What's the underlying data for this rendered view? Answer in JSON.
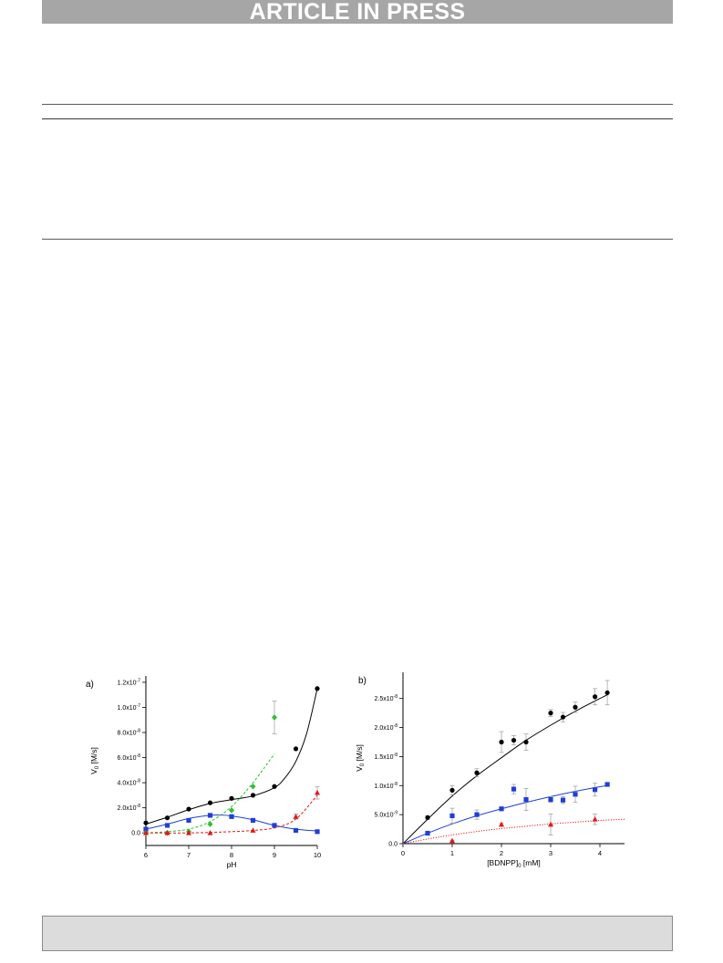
{
  "header": {
    "banner_text": "ARTICLE IN PRESS"
  },
  "figure": {
    "panels": [
      {
        "id": "a",
        "label": "a)"
      },
      {
        "id": "b",
        "label": "b)"
      }
    ]
  },
  "chart_data": [
    {
      "type": "scatter",
      "panel_label": "a)",
      "xlabel": "pH",
      "ylabel": "V0 [M/s]",
      "ylabel_main": "V",
      "ylabel_sub": "0",
      "ylabel_unit": " [M/s]",
      "xlim": [
        6,
        10
      ],
      "ylim": [
        -1e-08,
        1.25e-07
      ],
      "xticks": [
        6,
        7,
        8,
        9,
        10
      ],
      "xtick_labels": [
        "6",
        "7",
        "8",
        "9",
        "10"
      ],
      "yticks": [
        0,
        2e-08,
        4e-08,
        6e-08,
        8e-08,
        1e-07,
        1.2e-07
      ],
      "ytick_labels": [
        "0.0",
        "2.0x10",
        "4.0x10",
        "6.0x10",
        "8.0x10",
        "1.0x10",
        "1.2x10"
      ],
      "ytick_exponents": [
        "",
        "-8",
        "-8",
        "-8",
        "-8",
        "-7",
        "-7"
      ],
      "grid": false,
      "series": [
        {
          "marker": "circle",
          "color": "#000000",
          "line": "solid",
          "x": [
            6,
            6.5,
            7,
            7.5,
            8,
            8.5,
            9,
            9.5,
            10
          ],
          "y": [
            8e-09,
            1.2e-08,
            1.9e-08,
            2.4e-08,
            2.75e-08,
            3e-08,
            3.7e-08,
            6.7e-08,
            1.15e-07
          ],
          "fit_x": [
            6,
            6.5,
            7,
            7.5,
            8,
            8.5,
            9,
            9.25,
            9.5,
            9.75,
            10
          ],
          "fit_y": [
            7e-09,
            1.25e-08,
            1.85e-08,
            2.35e-08,
            2.65e-08,
            2.95e-08,
            3.6e-08,
            4.4e-08,
            5.7e-08,
            7.9e-08,
            1.15e-07
          ]
        },
        {
          "marker": "square",
          "color": "#1f3fd6",
          "line": "solid",
          "x": [
            6,
            6.5,
            7,
            7.5,
            8,
            8.5,
            9,
            9.5,
            10
          ],
          "y": [
            3e-09,
            6e-09,
            1e-08,
            1.4e-08,
            1.3e-08,
            1e-08,
            6e-09,
            2e-09,
            1e-09
          ],
          "fit_x": [
            6,
            6.5,
            7,
            7.5,
            7.75,
            8,
            8.5,
            9,
            9.5,
            10
          ],
          "fit_y": [
            3e-09,
            7e-09,
            1.15e-08,
            1.4e-08,
            1.42e-08,
            1.35e-08,
            1.05e-08,
            6e-09,
            3e-09,
            1.5e-09
          ]
        },
        {
          "marker": "diamond",
          "color": "#2fbf2f",
          "line": "dashed",
          "x": [
            6,
            6.5,
            7,
            7.5,
            8,
            8.5,
            9
          ],
          "y": [
            0,
            0,
            1e-09,
            7e-09,
            1.8e-08,
            3.7e-08,
            9.2e-08
          ],
          "err": [
            0,
            0,
            0,
            0,
            0,
            0,
            1.3e-08
          ],
          "fit_x": [
            6,
            6.5,
            7,
            7.5,
            8,
            8.5,
            9
          ],
          "fit_y": [
            0,
            1e-09,
            3e-09,
            9e-09,
            2.1e-08,
            4e-08,
            6.3e-08
          ]
        },
        {
          "marker": "triangle",
          "color": "#e01818",
          "line": "dashed",
          "x": [
            6,
            6.5,
            7,
            7.5,
            8.5,
            9.5,
            10
          ],
          "y": [
            0,
            0,
            0,
            0,
            2e-09,
            1.3e-08,
            3.2e-08
          ],
          "err": [
            0,
            0,
            0,
            0,
            0,
            2e-09,
            5e-09
          ],
          "fit_x": [
            6,
            7,
            8,
            8.5,
            9,
            9.5,
            10
          ],
          "fit_y": [
            0,
            0,
            1e-09,
            2e-09,
            4e-09,
            1.1e-08,
            3e-08
          ]
        }
      ]
    },
    {
      "type": "scatter",
      "panel_label": "b)",
      "xlabel": "[BDNPP]0 [mM]",
      "xlabel_main": "[BDNPP]",
      "xlabel_sub": "0",
      "xlabel_unit": " [mM]",
      "ylabel": "V0 [M/s]",
      "ylabel_main": "V",
      "ylabel_sub": "0",
      "ylabel_unit": " [M/s]",
      "xlim": [
        0,
        4.5
      ],
      "ylim": [
        0,
        2.95e-08
      ],
      "xticks": [
        0,
        1,
        2,
        3,
        4
      ],
      "xtick_labels": [
        "0",
        "1",
        "2",
        "3",
        "4"
      ],
      "yticks": [
        0,
        5e-09,
        1e-08,
        1.5e-08,
        2e-08,
        2.5e-08
      ],
      "ytick_labels": [
        "0.0",
        "5.0x10",
        "1.0x10",
        "1.5x10",
        "2.0x10",
        "2.5x10"
      ],
      "ytick_exponents": [
        "",
        "-9",
        "-8",
        "-8",
        "-8",
        "-8"
      ],
      "grid": false,
      "series": [
        {
          "marker": "circle",
          "color": "#000000",
          "line": "solid",
          "x": [
            0.5,
            1.0,
            1.5,
            2.0,
            2.25,
            2.5,
            3.0,
            3.25,
            3.5,
            3.9,
            4.15
          ],
          "y": [
            4.5e-09,
            9.2e-09,
            1.22e-08,
            1.75e-08,
            1.78e-08,
            1.75e-08,
            2.25e-08,
            2.18e-08,
            2.35e-08,
            2.53e-08,
            2.6e-08
          ],
          "err": [
            3e-10,
            8e-10,
            7e-10,
            1.8e-09,
            8e-10,
            1.4e-09,
            6e-10,
            8e-10,
            9e-10,
            1.4e-09,
            2.1e-09
          ],
          "fit_x": [
            0,
            0.5,
            1,
            1.5,
            2,
            2.5,
            3,
            3.5,
            4,
            4.15
          ],
          "fit_y": [
            0,
            4.2e-09,
            8.2e-09,
            1.17e-08,
            1.48e-08,
            1.78e-08,
            2.04e-08,
            2.28e-08,
            2.5e-08,
            2.56e-08
          ]
        },
        {
          "marker": "square",
          "color": "#1f3fd6",
          "line": "solid",
          "x": [
            0.5,
            1.0,
            1.5,
            2.0,
            2.25,
            2.5,
            3.0,
            3.25,
            3.5,
            3.9,
            4.15
          ],
          "y": [
            1.8e-09,
            4.8e-09,
            5e-09,
            6e-09,
            9.4e-09,
            7.6e-09,
            7.6e-09,
            7.5e-09,
            8.5e-09,
            9.3e-09,
            1.02e-08
          ],
          "err": [
            3e-10,
            1.3e-09,
            8e-10,
            3e-10,
            8e-10,
            1.9e-09,
            5e-10,
            6e-10,
            1.4e-09,
            1.1e-09,
            3e-10
          ],
          "fit_x": [
            0,
            0.5,
            1,
            1.5,
            2,
            2.5,
            3,
            3.5,
            4,
            4.15
          ],
          "fit_y": [
            0,
            1.8e-09,
            3.4e-09,
            4.8e-09,
            6e-09,
            7.1e-09,
            8.1e-09,
            9e-09,
            9.8e-09,
            1e-08
          ]
        },
        {
          "marker": "triangle",
          "color": "#e01818",
          "line": "dotted",
          "x": [
            1.0,
            2.0,
            3.0,
            3.9
          ],
          "y": [
            5e-10,
            3.3e-09,
            3.3e-09,
            4.2e-09
          ],
          "err": [
            1e-10,
            2e-10,
            1.8e-09,
            9e-10
          ],
          "fit_x": [
            0,
            0.5,
            1,
            1.5,
            2,
            2.5,
            3,
            3.5,
            4,
            4.5
          ],
          "fit_y": [
            0,
            8e-10,
            1.5e-09,
            2.1e-09,
            2.6e-09,
            3e-09,
            3.4e-09,
            3.7e-09,
            4e-09,
            4.2e-09
          ]
        }
      ]
    }
  ]
}
